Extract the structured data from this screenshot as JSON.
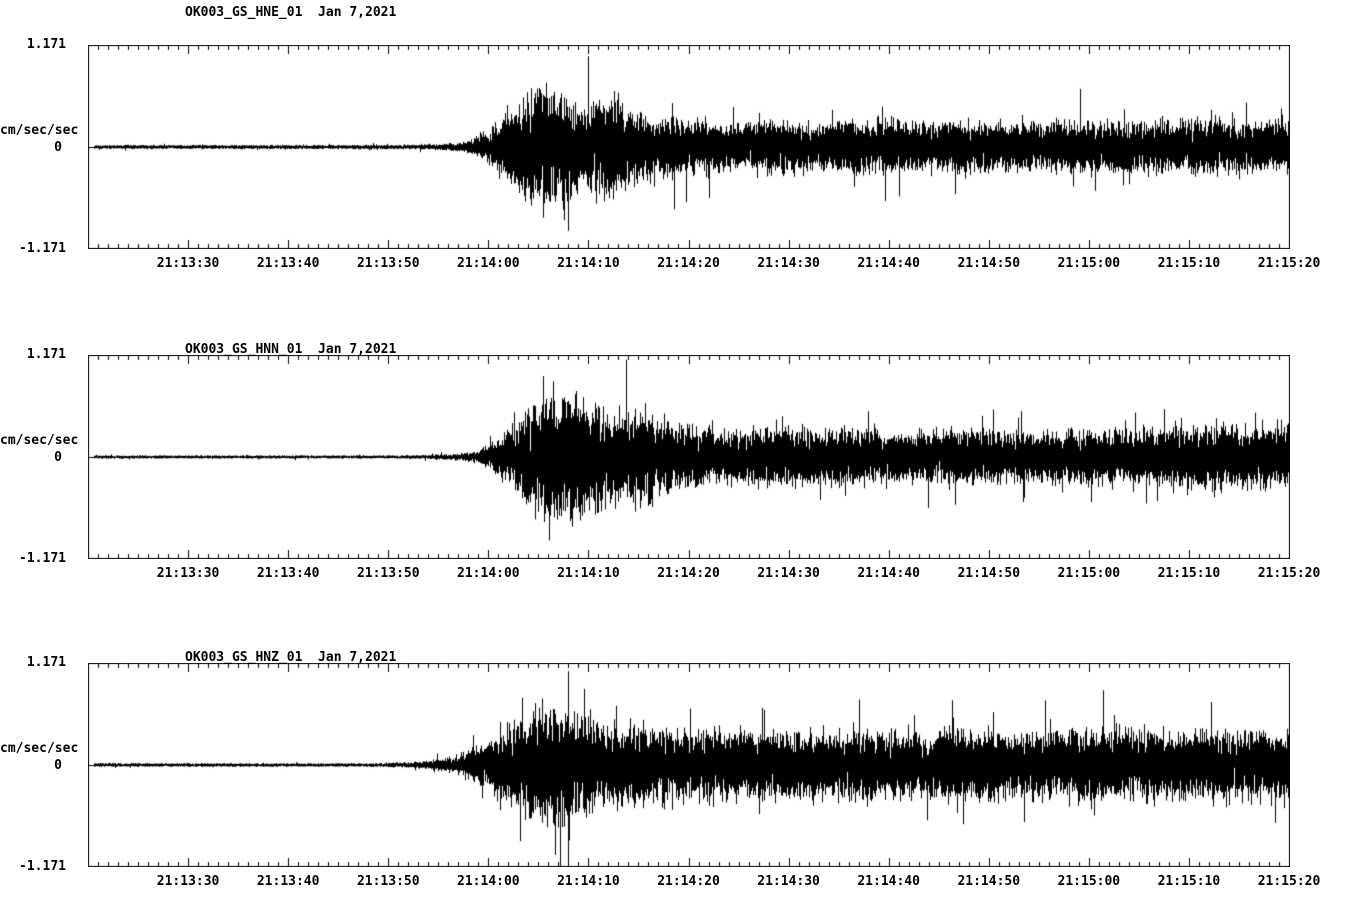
{
  "page": {
    "background": "#ffffff",
    "trace_color": "#000000",
    "text_color": "#000000"
  },
  "chart_data": [
    {
      "type": "line",
      "variant": "seismogram-waveform",
      "title": "OK003_GS_HNE_01  Jan 7,2021",
      "ylabel": "cm/sec/sec",
      "ytick_labels": [
        "1.171",
        "0",
        "-1.171"
      ],
      "ylim": [
        -1.171,
        1.171
      ],
      "grid": false,
      "legend": "none",
      "line_color": "#000000",
      "x_tick_labels": [
        "21:13:30",
        "21:13:40",
        "21:13:50",
        "21:14:00",
        "21:14:10",
        "21:14:20",
        "21:14:30",
        "21:14:40",
        "21:14:50",
        "21:15:00",
        "21:15:10",
        "21:15:20"
      ],
      "x_tick_offsets_seconds": [
        10,
        20,
        30,
        40,
        50,
        60,
        70,
        80,
        90,
        100,
        110,
        120
      ],
      "time_span_seconds": 120,
      "envelope_units": "fraction of full scale 1.171 cm/sec/sec vs seconds from window start",
      "envelope_estimate": [
        [
          0,
          0.022
        ],
        [
          28,
          0.022
        ],
        [
          33,
          0.028
        ],
        [
          36,
          0.04
        ],
        [
          38,
          0.07
        ],
        [
          40,
          0.2
        ],
        [
          42,
          0.45
        ],
        [
          44,
          0.6
        ],
        [
          45.5,
          0.72
        ],
        [
          47,
          0.62
        ],
        [
          49,
          0.5
        ],
        [
          51,
          0.55
        ],
        [
          52.5,
          0.6
        ],
        [
          54,
          0.42
        ],
        [
          56,
          0.36
        ],
        [
          58,
          0.32
        ],
        [
          61,
          0.3
        ],
        [
          64,
          0.28
        ],
        [
          68,
          0.3
        ],
        [
          72,
          0.27
        ],
        [
          76,
          0.29
        ],
        [
          80,
          0.31
        ],
        [
          84,
          0.27
        ],
        [
          88,
          0.29
        ],
        [
          92,
          0.26
        ],
        [
          96,
          0.28
        ],
        [
          100,
          0.3
        ],
        [
          104,
          0.27
        ],
        [
          108,
          0.3
        ],
        [
          112,
          0.31
        ],
        [
          116,
          0.28
        ],
        [
          120,
          0.3
        ]
      ]
    },
    {
      "type": "line",
      "variant": "seismogram-waveform",
      "title": "OK003_GS_HNN_01  Jan 7,2021",
      "ylabel": "cm/sec/sec",
      "ytick_labels": [
        "1.171",
        "0",
        "-1.171"
      ],
      "ylim": [
        -1.171,
        1.171
      ],
      "grid": false,
      "legend": "none",
      "line_color": "#000000",
      "x_tick_labels": [
        "21:13:30",
        "21:13:40",
        "21:13:50",
        "21:14:00",
        "21:14:10",
        "21:14:20",
        "21:14:30",
        "21:14:40",
        "21:14:50",
        "21:15:00",
        "21:15:10",
        "21:15:20"
      ],
      "x_tick_offsets_seconds": [
        10,
        20,
        30,
        40,
        50,
        60,
        70,
        80,
        90,
        100,
        110,
        120
      ],
      "time_span_seconds": 120,
      "envelope_units": "fraction of full scale 1.171 cm/sec/sec vs seconds from window start",
      "envelope_estimate": [
        [
          0,
          0.018
        ],
        [
          30,
          0.018
        ],
        [
          34,
          0.024
        ],
        [
          37,
          0.04
        ],
        [
          39,
          0.08
        ],
        [
          41,
          0.2
        ],
        [
          43,
          0.45
        ],
        [
          44.5,
          0.65
        ],
        [
          46,
          0.8
        ],
        [
          47.5,
          0.68
        ],
        [
          49,
          0.72
        ],
        [
          51,
          0.55
        ],
        [
          53,
          0.48
        ],
        [
          55,
          0.52
        ],
        [
          57,
          0.42
        ],
        [
          59,
          0.36
        ],
        [
          62,
          0.33
        ],
        [
          65,
          0.3
        ],
        [
          68,
          0.33
        ],
        [
          72,
          0.3
        ],
        [
          76,
          0.32
        ],
        [
          80,
          0.29
        ],
        [
          84,
          0.31
        ],
        [
          88,
          0.33
        ],
        [
          92,
          0.3
        ],
        [
          96,
          0.28
        ],
        [
          100,
          0.3
        ],
        [
          104,
          0.29
        ],
        [
          108,
          0.33
        ],
        [
          112,
          0.36
        ],
        [
          116,
          0.34
        ],
        [
          120,
          0.36
        ]
      ]
    },
    {
      "type": "line",
      "variant": "seismogram-waveform",
      "title": "OK003_GS_HNZ_01  Jan 7,2021",
      "ylabel": "cm/sec/sec",
      "ytick_labels": [
        "1.171",
        "0",
        "-1.171"
      ],
      "ylim": [
        -1.171,
        1.171
      ],
      "grid": false,
      "legend": "none",
      "line_color": "#000000",
      "x_tick_labels": [
        "21:13:30",
        "21:13:40",
        "21:13:50",
        "21:14:00",
        "21:14:10",
        "21:14:20",
        "21:14:30",
        "21:14:40",
        "21:14:50",
        "21:15:00",
        "21:15:10",
        "21:15:20"
      ],
      "x_tick_offsets_seconds": [
        10,
        20,
        30,
        40,
        50,
        60,
        70,
        80,
        90,
        100,
        110,
        120
      ],
      "time_span_seconds": 120,
      "envelope_units": "fraction of full scale 1.171 cm/sec/sec vs seconds from window start",
      "envelope_estimate": [
        [
          0,
          0.02
        ],
        [
          28,
          0.02
        ],
        [
          32,
          0.03
        ],
        [
          34,
          0.05
        ],
        [
          36,
          0.09
        ],
        [
          38,
          0.16
        ],
        [
          40,
          0.3
        ],
        [
          42,
          0.42
        ],
        [
          43.5,
          0.55
        ],
        [
          45,
          0.68
        ],
        [
          46,
          0.62
        ],
        [
          47,
          0.7
        ],
        [
          48.5,
          0.58
        ],
        [
          50,
          0.54
        ],
        [
          52,
          0.5
        ],
        [
          54,
          0.46
        ],
        [
          56,
          0.42
        ],
        [
          59,
          0.4
        ],
        [
          62,
          0.42
        ],
        [
          65,
          0.38
        ],
        [
          68,
          0.4
        ],
        [
          72,
          0.38
        ],
        [
          76,
          0.4
        ],
        [
          80,
          0.37
        ],
        [
          84,
          0.39
        ],
        [
          88,
          0.41
        ],
        [
          92,
          0.37
        ],
        [
          96,
          0.39
        ],
        [
          100,
          0.41
        ],
        [
          104,
          0.38
        ],
        [
          108,
          0.4
        ],
        [
          112,
          0.37
        ],
        [
          116,
          0.39
        ],
        [
          120,
          0.4
        ]
      ]
    }
  ]
}
